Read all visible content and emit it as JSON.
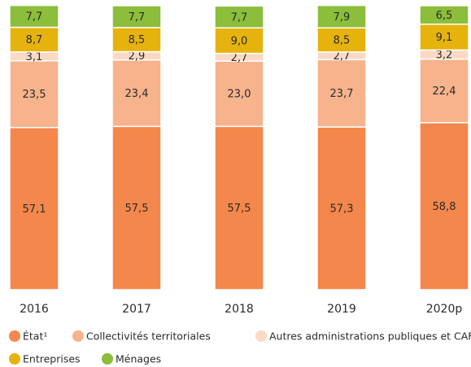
{
  "chart_data": {
    "type": "stacked_bar",
    "categories": [
      "2016",
      "2017",
      "2018",
      "2019",
      "2020p"
    ],
    "ylim": [
      0,
      100
    ],
    "series": [
      {
        "name": "État¹",
        "color": "#f4874b",
        "values": [
          57.1,
          57.5,
          57.5,
          57.3,
          58.8
        ],
        "value_labels": [
          "57,1",
          "57,5",
          "57,5",
          "57,3",
          "58,8"
        ]
      },
      {
        "name": "Collectivités territoriales",
        "color": "#f6b38c",
        "values": [
          23.5,
          23.4,
          23.0,
          23.7,
          22.4
        ],
        "value_labels": [
          "23,5",
          "23,4",
          "23,0",
          "23,7",
          "22,4"
        ]
      },
      {
        "name": "Autres administrations publiques et CAF",
        "color": "#fbd9c5",
        "values": [
          3.1,
          2.9,
          2.7,
          2.7,
          3.2
        ],
        "value_labels": [
          "3,1",
          "2,9",
          "2,7",
          "2,7",
          "3,2"
        ]
      },
      {
        "name": "Entreprises",
        "color": "#e6b30d",
        "values": [
          8.7,
          8.5,
          9.0,
          8.5,
          9.1
        ],
        "value_labels": [
          "8,7",
          "8,5",
          "9,0",
          "8,5",
          "9,1"
        ]
      },
      {
        "name": "Ménages",
        "color": "#8cbd3b",
        "values": [
          7.7,
          7.7,
          7.7,
          7.9,
          6.5
        ],
        "value_labels": [
          "7,7",
          "7,7",
          "7,7",
          "7,9",
          "6,5"
        ]
      }
    ]
  }
}
